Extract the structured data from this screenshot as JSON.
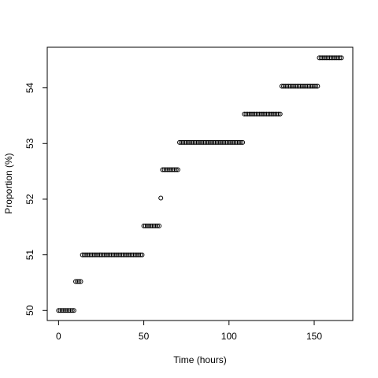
{
  "chart_data": {
    "type": "scatter",
    "xlabel": "Time (hours)",
    "ylabel": "Proportion (%)",
    "x": [
      0,
      1,
      2,
      3,
      4,
      5,
      6,
      7,
      8,
      9,
      10,
      11,
      12,
      13,
      14,
      15,
      16,
      17,
      18,
      19,
      20,
      21,
      22,
      23,
      24,
      25,
      26,
      27,
      28,
      29,
      30,
      31,
      32,
      33,
      34,
      35,
      36,
      37,
      38,
      39,
      40,
      41,
      42,
      43,
      44,
      45,
      46,
      47,
      48,
      49,
      50,
      51,
      52,
      53,
      54,
      55,
      56,
      57,
      58,
      59,
      60,
      61,
      62,
      63,
      64,
      65,
      66,
      67,
      68,
      69,
      70,
      71,
      72,
      73,
      74,
      75,
      76,
      77,
      78,
      79,
      80,
      81,
      82,
      83,
      84,
      85,
      86,
      87,
      88,
      89,
      90,
      91,
      92,
      93,
      94,
      95,
      96,
      97,
      98,
      99,
      100,
      101,
      102,
      103,
      104,
      105,
      106,
      107,
      108,
      109,
      110,
      111,
      112,
      113,
      114,
      115,
      116,
      117,
      118,
      119,
      120,
      121,
      122,
      123,
      124,
      125,
      126,
      127,
      128,
      129,
      130,
      131,
      132,
      133,
      134,
      135,
      136,
      137,
      138,
      139,
      140,
      141,
      142,
      143,
      144,
      145,
      146,
      147,
      148,
      149,
      150,
      151,
      152,
      153,
      154,
      155,
      156,
      157,
      158,
      159,
      160,
      161,
      162,
      163,
      164,
      165,
      166
    ],
    "y": [
      50,
      50,
      50,
      50,
      50,
      50,
      50,
      50,
      50,
      50,
      50.52,
      50.52,
      50.52,
      50.52,
      51,
      51,
      51,
      51,
      51,
      51,
      51,
      51,
      51,
      51,
      51,
      51,
      51,
      51,
      51,
      51,
      51,
      51,
      51,
      51,
      51,
      51,
      51,
      51,
      51,
      51,
      51,
      51,
      51,
      51,
      51,
      51,
      51,
      51,
      51,
      51,
      51.52,
      51.52,
      51.52,
      51.52,
      51.52,
      51.52,
      51.52,
      51.52,
      51.52,
      51.52,
      52.02,
      52.53,
      52.53,
      52.53,
      52.53,
      52.53,
      52.53,
      52.53,
      52.53,
      52.53,
      52.53,
      53.02,
      53.02,
      53.02,
      53.02,
      53.02,
      53.02,
      53.02,
      53.02,
      53.02,
      53.02,
      53.02,
      53.02,
      53.02,
      53.02,
      53.02,
      53.02,
      53.02,
      53.02,
      53.02,
      53.02,
      53.02,
      53.02,
      53.02,
      53.02,
      53.02,
      53.02,
      53.02,
      53.02,
      53.02,
      53.02,
      53.02,
      53.02,
      53.02,
      53.02,
      53.02,
      53.02,
      53.02,
      53.02,
      53.53,
      53.53,
      53.53,
      53.53,
      53.53,
      53.53,
      53.53,
      53.53,
      53.53,
      53.53,
      53.53,
      53.53,
      53.53,
      53.53,
      53.53,
      53.53,
      53.53,
      53.53,
      53.53,
      53.53,
      53.53,
      53.53,
      54.03,
      54.03,
      54.03,
      54.03,
      54.03,
      54.03,
      54.03,
      54.03,
      54.03,
      54.03,
      54.03,
      54.03,
      54.03,
      54.03,
      54.03,
      54.03,
      54.03,
      54.03,
      54.03,
      54.03,
      54.03,
      54.03,
      54.54,
      54.54,
      54.54,
      54.54,
      54.54,
      54.54,
      54.54,
      54.54,
      54.54,
      54.54,
      54.54,
      54.54,
      54.54,
      54.54
    ],
    "color": "#000000",
    "xlim": [
      -6.64,
      172.64
    ],
    "xticks": [
      0,
      50,
      100,
      150
    ],
    "ylim": [
      49.82,
      54.73
    ],
    "yticks": [
      50,
      51,
      52,
      53,
      54
    ]
  }
}
